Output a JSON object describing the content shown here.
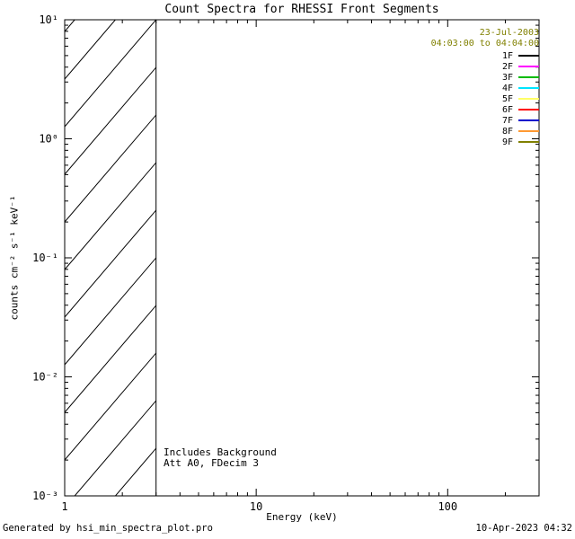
{
  "figure": {
    "background": "#ffffff",
    "date_line1": "23-Jul-2003",
    "date_line2": "04:03:00 to 04:04:00",
    "date_text_color": "#808000",
    "footer_left": "Generated by hsi_min_spectra_plot.pro",
    "footer_right": "10-Apr-2023 04:32"
  },
  "chart_data": {
    "type": "line",
    "title": "Count Spectra for RHESSI Front Segments",
    "xlabel": "Energy (keV)",
    "ylabel": "counts cm⁻² s⁻¹ keV⁻¹",
    "x_scale": "log",
    "y_scale": "log",
    "xlim": [
      1,
      300
    ],
    "ylim": [
      0.001,
      10
    ],
    "x_ticks": [
      {
        "value": 1,
        "label": "1"
      },
      {
        "value": 10,
        "label": "10"
      },
      {
        "value": 100,
        "label": "100"
      }
    ],
    "y_ticks": [
      {
        "value": 10,
        "label": "10¹"
      },
      {
        "value": 1,
        "label": "10⁰"
      },
      {
        "value": 0.1,
        "label": "10⁻¹"
      },
      {
        "value": 0.01,
        "label": "10⁻²"
      },
      {
        "value": 0.001,
        "label": "10⁻³"
      }
    ],
    "grid": false,
    "axis_color": "#000000",
    "hatched_region": {
      "x_start": 1,
      "x_end": 3,
      "y_start": 0.001,
      "y_end": 10,
      "style": "diagonal-hatch"
    },
    "legend": {
      "position": "top-right",
      "entries": [
        {
          "label": "1F",
          "color": "#000000"
        },
        {
          "label": "2F",
          "color": "#ff00ff"
        },
        {
          "label": "3F",
          "color": "#00bb00"
        },
        {
          "label": "4F",
          "color": "#00e5ff"
        },
        {
          "label": "5F",
          "color": "#ffff66"
        },
        {
          "label": "6F",
          "color": "#ff0000"
        },
        {
          "label": "7F",
          "color": "#0000cc"
        },
        {
          "label": "8F",
          "color": "#ff9933"
        },
        {
          "label": "9F",
          "color": "#808000"
        }
      ]
    },
    "series": [
      {
        "name": "1F",
        "color": "#000000",
        "x": [],
        "y": []
      },
      {
        "name": "2F",
        "color": "#ff00ff",
        "x": [],
        "y": []
      },
      {
        "name": "3F",
        "color": "#00bb00",
        "x": [],
        "y": []
      },
      {
        "name": "4F",
        "color": "#00e5ff",
        "x": [],
        "y": []
      },
      {
        "name": "5F",
        "color": "#ffff66",
        "x": [],
        "y": []
      },
      {
        "name": "6F",
        "color": "#ff0000",
        "x": [],
        "y": []
      },
      {
        "name": "7F",
        "color": "#0000cc",
        "x": [],
        "y": []
      },
      {
        "name": "8F",
        "color": "#ff9933",
        "x": [],
        "y": []
      },
      {
        "name": "9F",
        "color": "#808000",
        "x": [],
        "y": []
      }
    ],
    "series_note": "No spectra curves are visible in the plot area; only the diagonally hatched region from 1 to 3 keV spanning the full vertical range is drawn.",
    "annotations": [
      "Includes Background",
      "Att A0, FDecim 3"
    ]
  }
}
